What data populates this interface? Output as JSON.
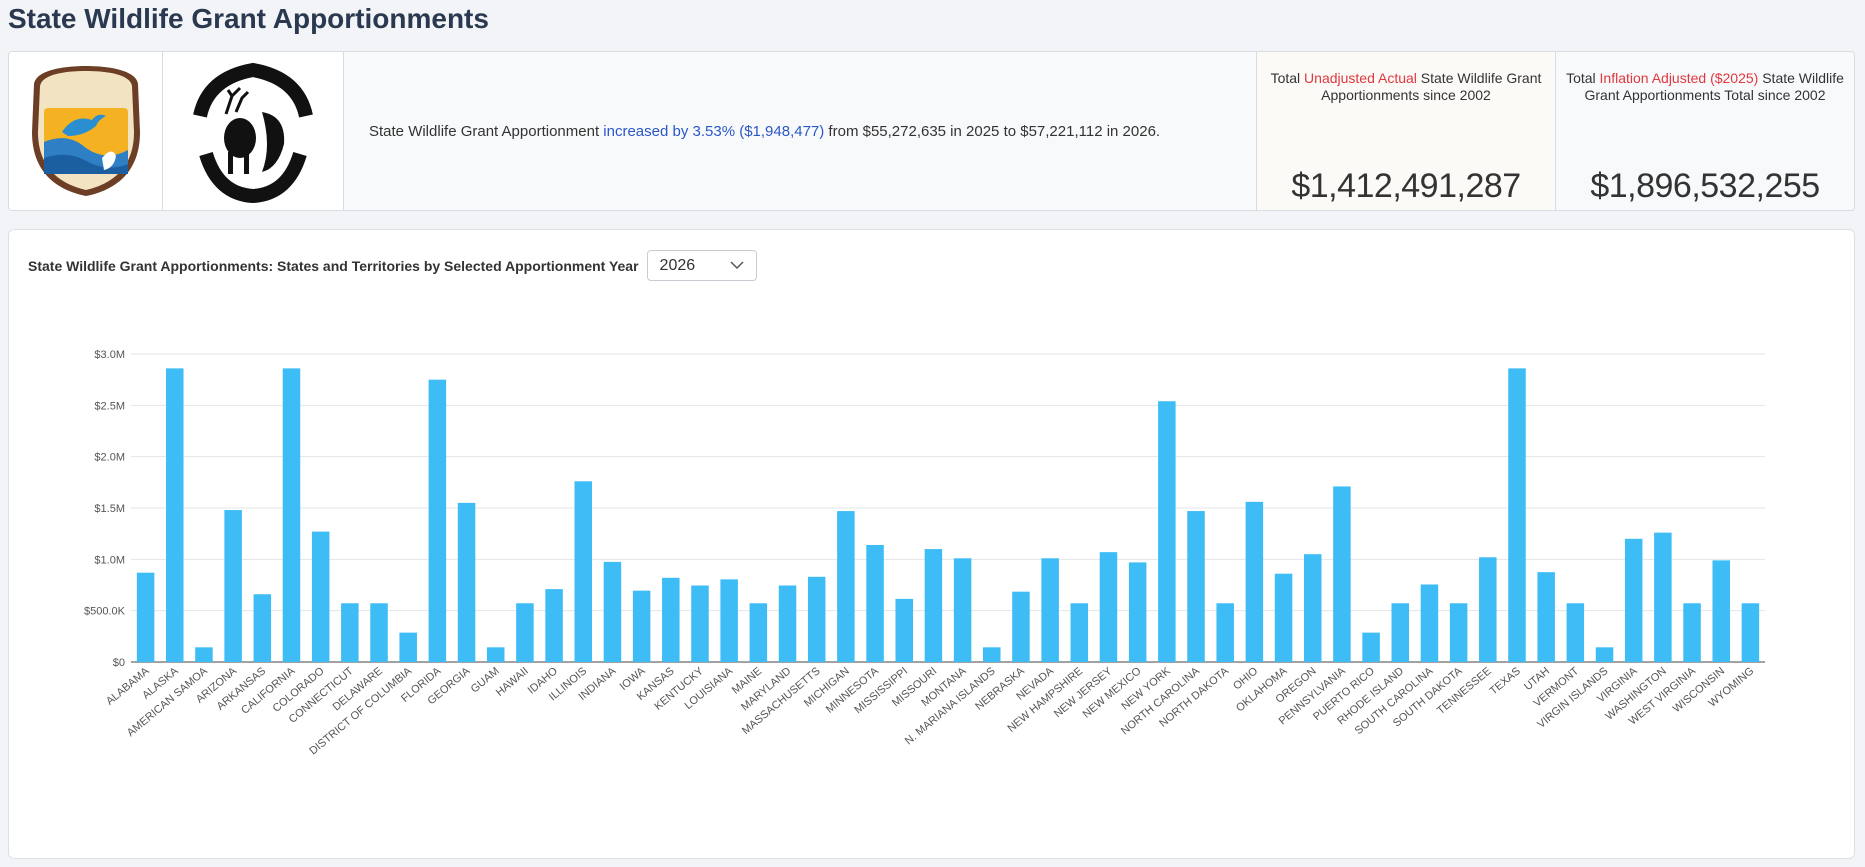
{
  "page": {
    "title": "State Wildlife Grant Apportionments"
  },
  "summary": {
    "prefix": "State Wildlife Grant Apportionment ",
    "highlight": "increased by 3.53% ($1,948,477)",
    "suffix": " from $55,272,635 in 2025 to $57,221,112 in 2026."
  },
  "kpis": {
    "unadjusted": {
      "label_pre": "Total ",
      "label_red": "Unadjusted Actual",
      "label_post": " State Wildlife Grant Apportionments since 2002",
      "value": "$1,412,491,287"
    },
    "inflation": {
      "label_pre": "Total ",
      "label_red": "Inflation Adjusted ($2025)",
      "label_post": " State Wildlife Grant Apportionments Total since 2002",
      "value": "$1,896,532,255"
    }
  },
  "chart_header": {
    "title": "State Wildlife Grant Apportionments: States and Territories by Selected Apportionment Year",
    "selected_year": "2026"
  },
  "colors": {
    "bar": "#3dbcf6",
    "accent_blue": "#2a57c8",
    "accent_red": "#e0383e"
  },
  "chart_data": {
    "type": "bar",
    "categories": [
      "ALABAMA",
      "ALASKA",
      "AMERICAN SAMOA",
      "ARIZONA",
      "ARKANSAS",
      "CALIFORNIA",
      "COLORADO",
      "CONNECTICUT",
      "DELAWARE",
      "DISTRICT OF COLUMBIA",
      "FLORIDA",
      "GEORGIA",
      "GUAM",
      "HAWAII",
      "IDAHO",
      "ILLINOIS",
      "INDIANA",
      "IOWA",
      "KANSAS",
      "KENTUCKY",
      "LOUISIANA",
      "MAINE",
      "MARYLAND",
      "MASSACHUSETTS",
      "MICHIGAN",
      "MINNESOTA",
      "MISSISSIPPI",
      "MISSOURI",
      "MONTANA",
      "N. MARIANA ISLANDS",
      "NEBRASKA",
      "NEVADA",
      "NEW HAMPSHIRE",
      "NEW JERSEY",
      "NEW MEXICO",
      "NEW YORK",
      "NORTH CAROLINA",
      "NORTH DAKOTA",
      "OHIO",
      "OKLAHOMA",
      "OREGON",
      "PENNSYLVANIA",
      "PUERTO RICO",
      "RHODE ISLAND",
      "SOUTH CAROLINA",
      "SOUTH DAKOTA",
      "TENNESSEE",
      "TEXAS",
      "UTAH",
      "VERMONT",
      "VIRGIN ISLANDS",
      "VIRGINIA",
      "WASHINGTON",
      "WEST VIRGINIA",
      "WISCONSIN",
      "WYOMING"
    ],
    "values": [
      870000,
      2860000,
      143000,
      1480000,
      660000,
      2860000,
      1270000,
      572000,
      572000,
      286000,
      2750000,
      1550000,
      143000,
      572000,
      710000,
      1760000,
      975000,
      695000,
      820000,
      745000,
      805000,
      572000,
      745000,
      830000,
      1470000,
      1140000,
      615000,
      1100000,
      1010000,
      143000,
      685000,
      1010000,
      572000,
      1070000,
      970000,
      2540000,
      1470000,
      572000,
      1560000,
      860000,
      1050000,
      1710000,
      286000,
      572000,
      755000,
      572000,
      1020000,
      2860000,
      875000,
      572000,
      143000,
      1200000,
      1260000,
      572000,
      990000,
      572000
    ],
    "y_ticks": [
      0,
      500000,
      1000000,
      1500000,
      2000000,
      2500000,
      3000000
    ],
    "y_tick_labels": [
      "$0",
      "$500.0K",
      "$1.0M",
      "$1.5M",
      "$2.0M",
      "$2.5M",
      "$3.0M"
    ],
    "ylim": [
      0,
      3000000
    ],
    "grid": true,
    "legend": "none"
  }
}
